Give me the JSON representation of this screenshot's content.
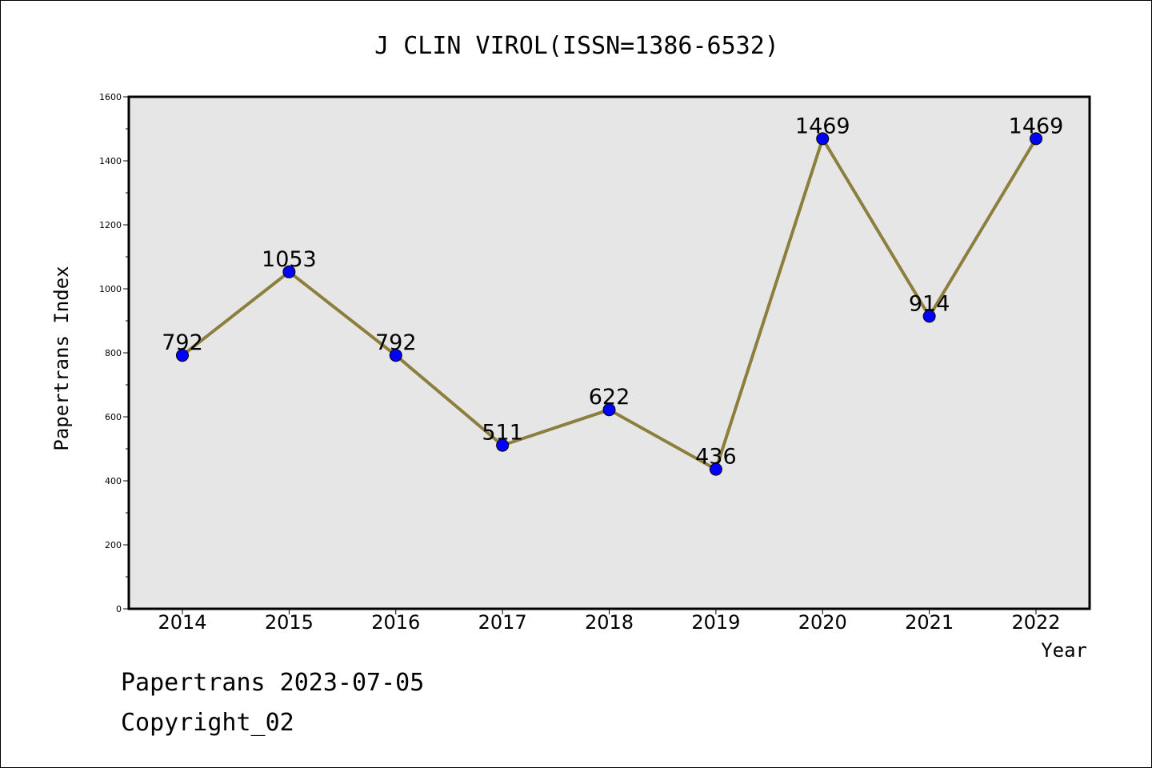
{
  "chart_data": {
    "type": "line",
    "title": "J CLIN VIROL(ISSN=1386-6532)",
    "xlabel": "Year",
    "ylabel": "Papertrans Index",
    "categories": [
      "2014",
      "2015",
      "2016",
      "2017",
      "2018",
      "2019",
      "2020",
      "2021",
      "2022"
    ],
    "series": [
      {
        "values": [
          792,
          1053,
          792,
          511,
          622,
          436,
          1469,
          914,
          1469
        ]
      }
    ],
    "ylim": [
      0,
      1600
    ],
    "yticks": [
      0,
      200,
      400,
      600,
      800,
      1000,
      1200,
      1400,
      1600
    ],
    "grid": false,
    "data_labels": true
  },
  "colors": {
    "line": "#8c7e3c",
    "marker": "#0000ff",
    "plot_background": "#e6e6e6"
  },
  "footer": {
    "date_line": "Papertrans 2023-07-05",
    "copyright_line": "Copyright_02"
  }
}
